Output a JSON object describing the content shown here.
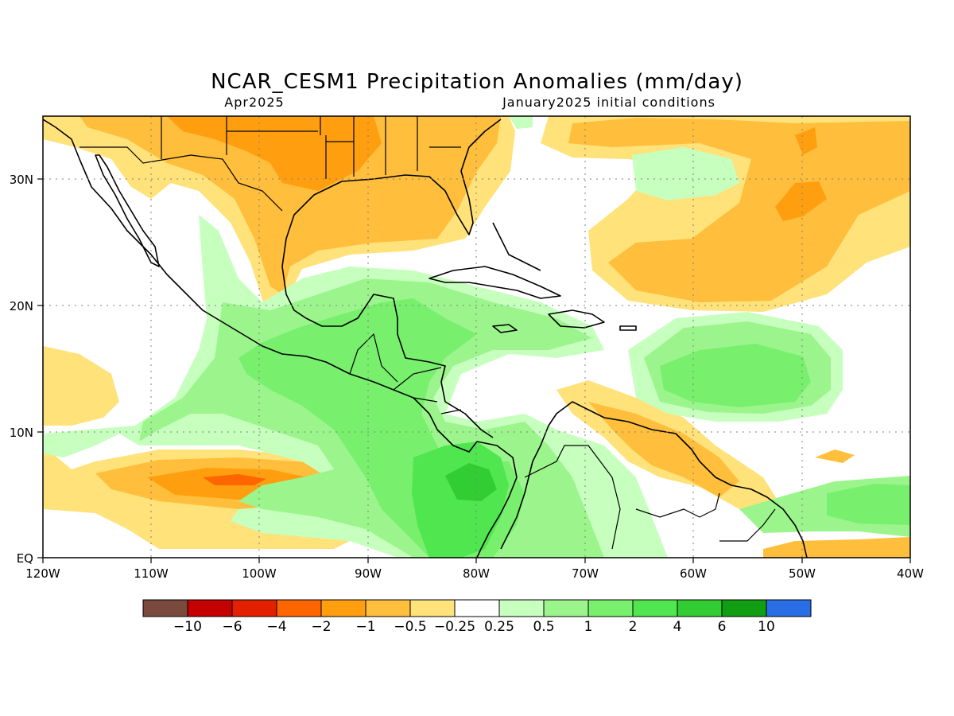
{
  "map": {
    "title": "NCAR_CESM1 Precipitation Anomalies (mm/day)",
    "subtitle_left": "Apr2025",
    "subtitle_right": "January2025 initial conditions",
    "lon_labels": [
      "120W",
      "110W",
      "100W",
      "90W",
      "80W",
      "70W",
      "60W",
      "50W",
      "40W"
    ],
    "lat_labels": [
      "30N",
      "20N",
      "10N",
      "EQ"
    ],
    "lon_range": [
      -120,
      -40
    ],
    "lat_range": [
      0,
      35
    ],
    "gridlines": true
  },
  "colorbar": {
    "colors": [
      "#7a4a3e",
      "#c40000",
      "#e32000",
      "#ff6600",
      "#ff9f10",
      "#ffbe3c",
      "#ffe27a",
      "#ffffff",
      "#c6ffbe",
      "#9cf58c",
      "#78f06e",
      "#50e650",
      "#32cd32",
      "#129e12",
      "#2a6ee6"
    ],
    "labels": [
      "−10",
      "−6",
      "−4",
      "−2",
      "−1",
      "−0.5",
      "−0.25",
      "0.25",
      "0.5",
      "1",
      "2",
      "4",
      "6",
      "10"
    ]
  }
}
